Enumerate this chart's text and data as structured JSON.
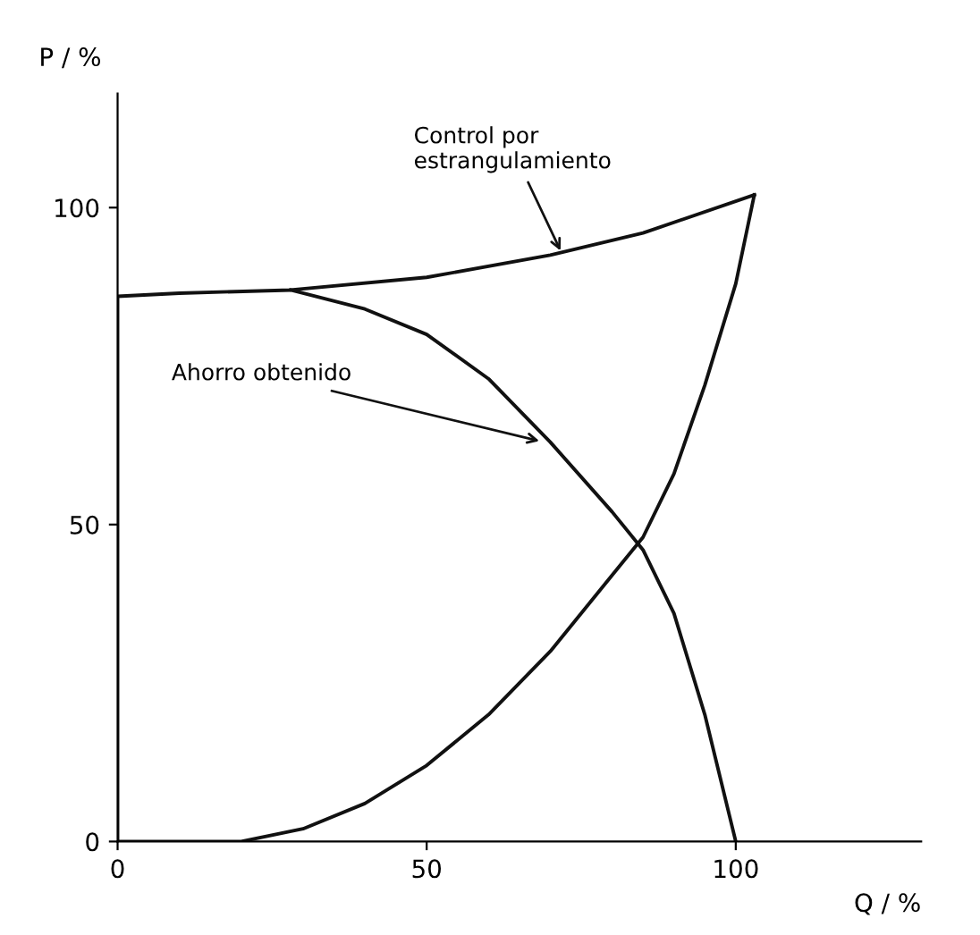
{
  "chart_data": {
    "type": "line",
    "xlabel": "Q / %",
    "ylabel": "P / %",
    "xlim": [
      0,
      130
    ],
    "ylim": [
      0,
      118
    ],
    "xticks": [
      0,
      50,
      100
    ],
    "yticks": [
      0,
      50,
      100
    ],
    "grid": false,
    "legend": false,
    "marker": "none",
    "line_style": "solid",
    "series": [
      {
        "color": "#111111",
        "x": [
          0,
          0,
          10,
          28,
          50,
          70,
          85,
          103
        ],
        "values": [
          0,
          86,
          86.5,
          87,
          89,
          92.5,
          96,
          102
        ]
      },
      {
        "color": "#111111",
        "x": [
          28,
          40,
          50,
          60,
          70,
          80,
          85,
          90,
          95,
          100
        ],
        "values": [
          87,
          84,
          80,
          73,
          63,
          52,
          46,
          36,
          20,
          0
        ]
      },
      {
        "color": "#111111",
        "x": [
          0,
          20,
          30,
          40,
          50,
          60,
          70,
          80,
          85,
          90,
          95,
          100,
          103
        ],
        "values": [
          0,
          0,
          2,
          6,
          12,
          20,
          30,
          42,
          48,
          58,
          72,
          88,
          102
        ]
      }
    ],
    "annotations": [
      {
        "text": "Control por\nestrangulamiento",
        "x": 72,
        "y": 92.5
      },
      {
        "text": "Ahorro obtenido",
        "x": 69,
        "y": 63
      }
    ]
  }
}
